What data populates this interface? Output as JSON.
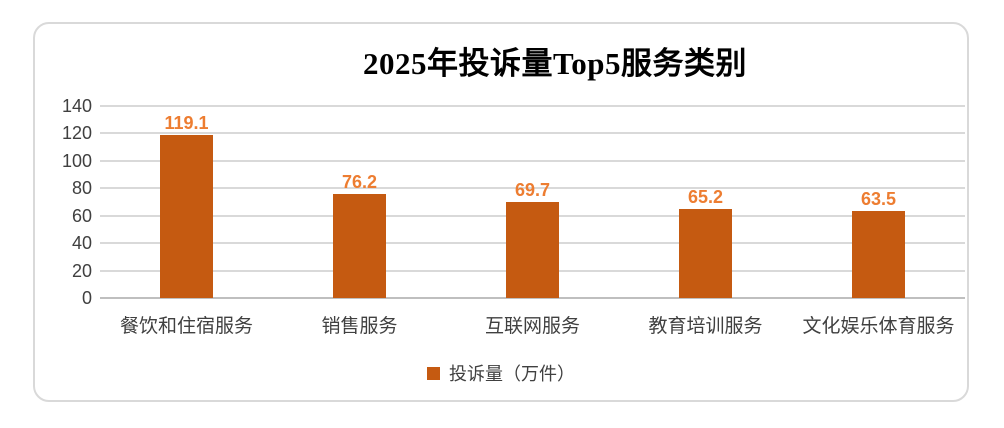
{
  "chart_data": {
    "type": "bar",
    "title": "2025年投诉量Top5服务类别",
    "categories": [
      "餐饮和住宿服务",
      "销售服务",
      "互联网服务",
      "教育培训服务",
      "文化娱乐体育服务"
    ],
    "series": [
      {
        "name": "投诉量（万件）",
        "values": [
          119.1,
          76.2,
          69.7,
          65.2,
          63.5
        ]
      }
    ],
    "value_labels": [
      "119.1",
      "76.2",
      "69.7",
      "65.2",
      "63.5"
    ],
    "ylabel": "",
    "xlabel": "",
    "ylim": [
      0,
      140
    ],
    "yticks": [
      0,
      20,
      40,
      60,
      80,
      100,
      120,
      140
    ],
    "grid": true,
    "legend": {
      "position": "bottom",
      "label": "投诉量（万件）"
    },
    "colors": {
      "bar": "#C55A11",
      "value_label": "#ED7D31",
      "gridline": "#D9D9D9",
      "axis_line": "#BFBFBF",
      "axis_text": "#404040",
      "title_text": "#000000",
      "frame_border": "#D9D9D9"
    }
  }
}
